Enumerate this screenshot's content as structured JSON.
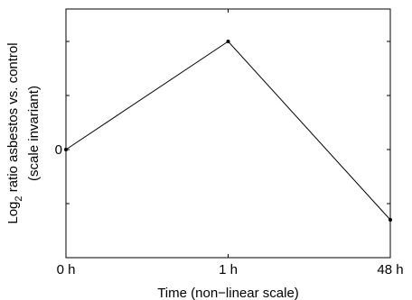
{
  "chart_data": {
    "type": "line",
    "title": "",
    "categories": [
      "0 h",
      "1 h",
      "48 h"
    ],
    "series": [
      {
        "values": [
          0,
          1,
          -0.65
        ]
      }
    ],
    "ylim": [
      -1,
      1.3
    ],
    "y_ticks": [
      {
        "value": 0,
        "label": "0"
      }
    ],
    "xlabel": "Time (non−linear scale)",
    "ylabel": {
      "prefix": "Log",
      "subscript": "2",
      "suffix": " ratio asbestos vs. control",
      "second_line": "(scale invariant)"
    },
    "grid": false,
    "colors": {
      "line": "#000000",
      "axes": "#000000"
    }
  }
}
